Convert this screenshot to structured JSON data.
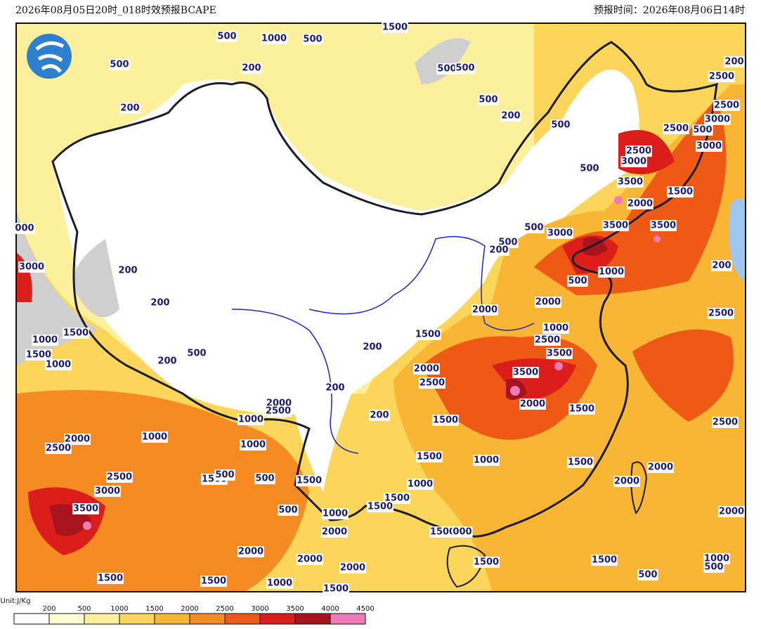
{
  "header": {
    "left": "2026年08月05日20时_018时效预报BCAPE",
    "right": "预报时间：2026年08月06日14时"
  },
  "legend": {
    "unit": "Unit:J/Kg",
    "ticks": [
      "200",
      "500",
      "1000",
      "1500",
      "2000",
      "2500",
      "3000",
      "3500",
      "4000",
      "4500"
    ],
    "colors": [
      "#ffffff",
      "#fffbd2",
      "#fdf09c",
      "#fcd65a",
      "#f9b534",
      "#f58b22",
      "#ee5a16",
      "#dc1e1a",
      "#a8141e",
      "#f07ab8"
    ]
  },
  "contour_labels": [
    "500",
    "1000",
    "500",
    "1500",
    "500",
    "200",
    "500",
    "500",
    "200",
    "500",
    "200",
    "500",
    "200",
    "2500",
    "2500",
    "2500",
    "500",
    "3000",
    "3000",
    "2500",
    "3000",
    "500",
    "3500",
    "2000",
    "1500",
    "500",
    "3000",
    "3500",
    "3500",
    "500",
    "200",
    "3000",
    "000",
    "200",
    "1000",
    "500",
    "200",
    "200",
    "2000",
    "2000",
    "2500",
    "1500",
    "1500",
    "1000",
    "1000",
    "1500",
    "1000",
    "2500",
    "3500",
    "200",
    "500",
    "200",
    "2000",
    "3500",
    "2500",
    "200",
    "2000",
    "2000",
    "2500",
    "1500",
    "200",
    "1000",
    "1500",
    "2000",
    "1000",
    "1000",
    "2500",
    "2500",
    "1500",
    "1000",
    "1500",
    "2000",
    "2500",
    "1500",
    "500",
    "500",
    "1500",
    "1000",
    "2000",
    "3000",
    "1500",
    "1500",
    "500",
    "2000",
    "3500",
    "1000",
    "2000",
    "1500",
    "000",
    "2000",
    "2000",
    "2000",
    "1500",
    "1500",
    "1000",
    "500",
    "500",
    "1500",
    "1500",
    "1000",
    "1500"
  ]
}
